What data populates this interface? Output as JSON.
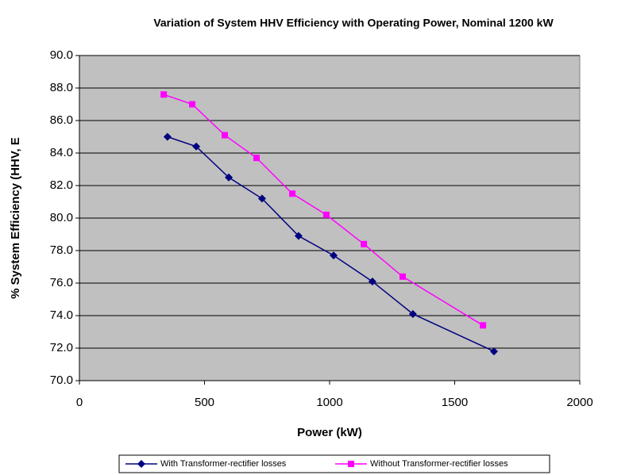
{
  "chart_data": {
    "type": "line",
    "title": "Variation of System HHV Efficiency with Operating Power, Nominal 1200 kW",
    "x_label": "Power (kW)",
    "y_label": "% System Efficiency (HHV, E",
    "xlim": [
      0,
      2000
    ],
    "xticks": [
      0,
      500,
      1000,
      1500,
      2000
    ],
    "ylim": [
      70,
      90
    ],
    "yticks": [
      {
        "value": 70,
        "label": "70.0"
      },
      {
        "value": 72,
        "label": "72.0"
      },
      {
        "value": 74,
        "label": "74.0"
      },
      {
        "value": 76,
        "label": "76.0"
      },
      {
        "value": 78,
        "label": "78.0"
      },
      {
        "value": 80,
        "label": "80.0"
      },
      {
        "value": 82,
        "label": "82.0"
      },
      {
        "value": 84,
        "label": "84.0"
      },
      {
        "value": 86,
        "label": "86.0"
      },
      {
        "value": 88,
        "label": "88.0"
      },
      {
        "value": 90,
        "label": "90.0"
      }
    ],
    "grid": true,
    "legend": "bottom",
    "series": [
      {
        "name": "With Transformer-rectifier losses",
        "color": "#000080",
        "marker": "diamond",
        "x": [
          352,
          467,
          597,
          730,
          876,
          1016,
          1171,
          1333,
          1657
        ],
        "values": [
          85.0,
          84.4,
          82.5,
          81.2,
          78.9,
          77.7,
          76.1,
          74.1,
          71.8
        ]
      },
      {
        "name": "Without Transformer-rectifier losses",
        "color": "#ff00ff",
        "marker": "square",
        "x": [
          337,
          451,
          581,
          708,
          851,
          987,
          1137,
          1292,
          1613
        ],
        "values": [
          87.6,
          87.0,
          85.1,
          83.7,
          81.5,
          80.2,
          78.4,
          76.4,
          73.4
        ]
      }
    ]
  }
}
